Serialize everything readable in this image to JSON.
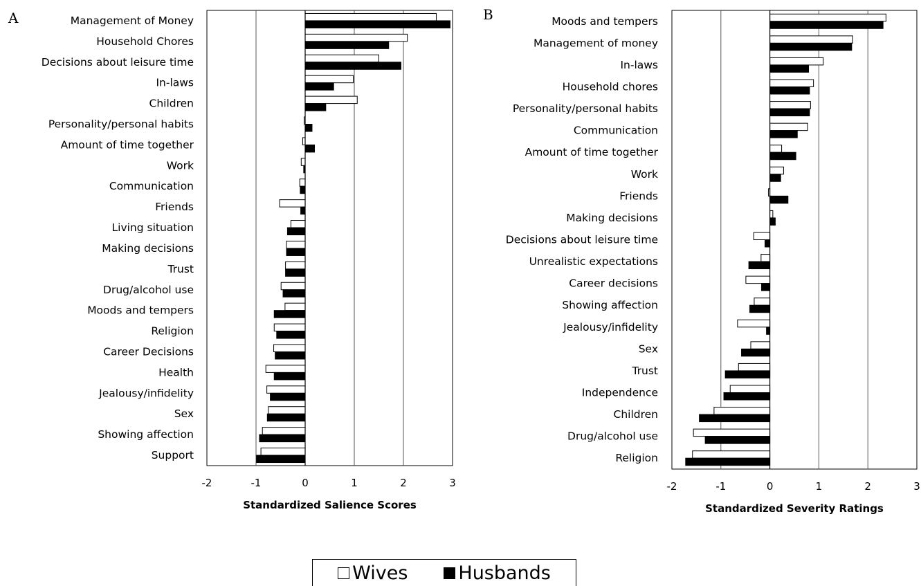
{
  "chart_data": [
    {
      "type": "bar",
      "orientation": "horizontal",
      "panel_letter": "A",
      "xlabel": "Standardized Salience Scores",
      "xlim": [
        -2,
        3
      ],
      "xticks": [
        "-2",
        "-1",
        "0",
        "1",
        "2",
        "3"
      ],
      "grid": "vertical gridlines",
      "categories": [
        "Management of Money",
        "Household Chores",
        "Decisions about leisure time",
        "In-laws",
        "Children",
        "Personality/personal habits",
        "Amount of time together",
        "Work",
        "Communication",
        "Friends",
        "Living situation",
        "Making decisions",
        "Trust",
        "Drug/alcohol use",
        "Moods and tempers",
        "Religion",
        "Career Decisions",
        "Health",
        "Jealousy/infidelity",
        "Sex",
        "Showing affection",
        "Support"
      ],
      "series": [
        {
          "name": "Wives",
          "color": "#ffffff",
          "values": [
            2.67,
            2.08,
            1.5,
            0.98,
            1.06,
            -0.02,
            -0.05,
            -0.08,
            -0.11,
            -0.52,
            -0.29,
            -0.38,
            -0.4,
            -0.49,
            -0.41,
            -0.63,
            -0.64,
            -0.8,
            -0.78,
            -0.75,
            -0.87,
            -0.9
          ]
        },
        {
          "name": "Husbands",
          "color": "#000000",
          "values": [
            2.95,
            1.7,
            1.95,
            0.58,
            0.42,
            0.14,
            0.19,
            -0.03,
            -0.1,
            -0.09,
            -0.36,
            -0.38,
            -0.4,
            -0.45,
            -0.63,
            -0.58,
            -0.61,
            -0.63,
            -0.71,
            -0.77,
            -0.93,
            -0.99
          ]
        }
      ]
    },
    {
      "type": "bar",
      "orientation": "horizontal",
      "panel_letter": "B",
      "xlabel": "Standardized Severity Ratings",
      "xlim": [
        -2,
        3
      ],
      "xticks": [
        "-2",
        "-1",
        "0",
        "1",
        "2",
        "3"
      ],
      "grid": "vertical gridlines",
      "categories": [
        "Moods and tempers",
        "Management of money",
        "In-laws",
        "Household chores",
        "Personality/personal habits",
        "Communication",
        "Amount of time together",
        "Work",
        "Friends",
        "Making decisions",
        "Decisions about leisure time",
        "Unrealistic expectations",
        "Career decisions",
        "Showing affection",
        "Jealousy/infidelity",
        "Sex",
        "Trust",
        "Independence",
        "Children",
        "Drug/alcohol use",
        "Religion"
      ],
      "series": [
        {
          "name": "Wives",
          "color": "#ffffff",
          "values": [
            2.37,
            1.69,
            1.09,
            0.89,
            0.83,
            0.77,
            0.24,
            0.28,
            -0.03,
            0.06,
            -0.33,
            -0.18,
            -0.49,
            -0.32,
            -0.66,
            -0.39,
            -0.64,
            -0.81,
            -1.14,
            -1.56,
            -1.58
          ]
        },
        {
          "name": "Husbands",
          "color": "#000000",
          "values": [
            2.31,
            1.67,
            0.79,
            0.81,
            0.81,
            0.56,
            0.53,
            0.22,
            0.37,
            0.11,
            -0.1,
            -0.43,
            -0.17,
            -0.41,
            -0.07,
            -0.58,
            -0.91,
            -0.94,
            -1.44,
            -1.32,
            -1.72
          ]
        }
      ]
    }
  ],
  "legend": {
    "items": [
      {
        "label": "Wives",
        "color": "#ffffff"
      },
      {
        "label": "Husbands",
        "color": "#000000"
      }
    ]
  }
}
